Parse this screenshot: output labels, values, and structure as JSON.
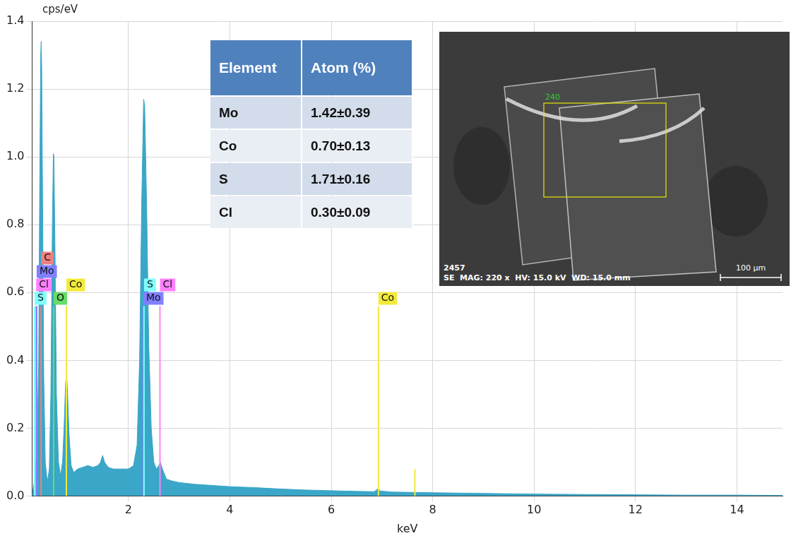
{
  "chart_data": {
    "type": "area",
    "x_label": "keV",
    "y_label": "cps/eV",
    "color": "#3aa6c8",
    "x": [
      0.1,
      0.15,
      0.2,
      0.23,
      0.25,
      0.27,
      0.28,
      0.29,
      0.31,
      0.33,
      0.36,
      0.4,
      0.44,
      0.47,
      0.5,
      0.52,
      0.53,
      0.55,
      0.58,
      0.62,
      0.66,
      0.7,
      0.73,
      0.76,
      0.78,
      0.8,
      0.83,
      0.87,
      0.92,
      1.0,
      1.1,
      1.2,
      1.3,
      1.4,
      1.45,
      1.49,
      1.53,
      1.6,
      1.7,
      1.8,
      1.9,
      2.0,
      2.1,
      2.17,
      2.22,
      2.26,
      2.3,
      2.32,
      2.36,
      2.4,
      2.45,
      2.5,
      2.55,
      2.6,
      2.63,
      2.67,
      2.75,
      2.85,
      3.0,
      3.3,
      3.6,
      4.0,
      4.5,
      5.0,
      5.5,
      6.0,
      6.5,
      6.85,
      6.92,
      6.97,
      7.2,
      7.6,
      8.0,
      9.0,
      10.0,
      11.0,
      12.0,
      13.0,
      14.0,
      14.9
    ],
    "values": [
      0.0,
      0.05,
      0.15,
      0.4,
      0.9,
      1.3,
      1.34,
      1.25,
      0.8,
      0.35,
      0.1,
      0.04,
      0.08,
      0.3,
      0.8,
      1.01,
      1.0,
      0.75,
      0.3,
      0.1,
      0.06,
      0.1,
      0.2,
      0.33,
      0.36,
      0.3,
      0.18,
      0.09,
      0.07,
      0.08,
      0.085,
      0.09,
      0.085,
      0.09,
      0.1,
      0.12,
      0.1,
      0.085,
      0.08,
      0.08,
      0.08,
      0.08,
      0.09,
      0.15,
      0.4,
      0.85,
      1.17,
      1.15,
      0.85,
      0.45,
      0.2,
      0.1,
      0.08,
      0.09,
      0.1,
      0.08,
      0.05,
      0.045,
      0.04,
      0.035,
      0.032,
      0.028,
      0.025,
      0.021,
      0.018,
      0.016,
      0.014,
      0.013,
      0.022,
      0.015,
      0.012,
      0.011,
      0.01,
      0.008,
      0.006,
      0.005,
      0.004,
      0.003,
      0.003,
      0.002
    ],
    "xlim": [
      0.1,
      14.9
    ],
    "xticks": [
      2,
      4,
      6,
      8,
      10,
      12,
      14
    ],
    "ylim": [
      0,
      1.4
    ],
    "yticks": [
      {
        "value": 0,
        "label": "0.0"
      },
      0.2,
      0.4,
      0.6,
      0.8,
      {
        "value": 1,
        "label": "1.0"
      },
      1.2,
      1.4
    ],
    "grid": true,
    "markers": [
      {
        "label": "S",
        "x": 0.149,
        "height": 0.56,
        "color": "#80ffff"
      },
      {
        "label": "Cl",
        "x": 0.18,
        "height": 0.56,
        "color": "#ff80ff"
      },
      {
        "label": "Mo",
        "x": 0.19,
        "height": 0.56,
        "color": "#8080ff"
      },
      {
        "label": "C",
        "x": 0.277,
        "height": 0.56,
        "color": "#f08080"
      },
      {
        "label": "O",
        "x": 0.525,
        "height": 0.56,
        "color": "#66dd66"
      },
      {
        "label": "Co",
        "x": 0.776,
        "height": 0.56,
        "color": "#f2ea3a"
      },
      {
        "label": "Mo",
        "x": 2.293,
        "height": 0.56,
        "color": "#8080ff"
      },
      {
        "label": "S",
        "x": 2.307,
        "height": 0.56,
        "color": "#80ffff"
      },
      {
        "label": "Cl",
        "x": 2.622,
        "height": 0.56,
        "color": "#ff80ff"
      },
      {
        "label": "Co",
        "x": 6.93,
        "height": 0.56,
        "color": "#f2ea3a"
      },
      {
        "x": 7.649,
        "height": 0.08,
        "color": "#f2ea3a"
      }
    ]
  },
  "table": {
    "columns": [
      "Element",
      "Atom (%)"
    ],
    "rows": [
      [
        "Mo",
        "1.42±0.39"
      ],
      [
        "Co",
        "0.70±0.13"
      ],
      [
        "S",
        "1.71±0.16"
      ],
      [
        "Cl",
        "0.30±0.09"
      ]
    ]
  },
  "image": {
    "region_label": "240",
    "id": "2457",
    "info": "SE  MAG: 220 x  HV: 15.0 kV  WD: 15.0 mm",
    "scale_bar": "100 µm"
  }
}
